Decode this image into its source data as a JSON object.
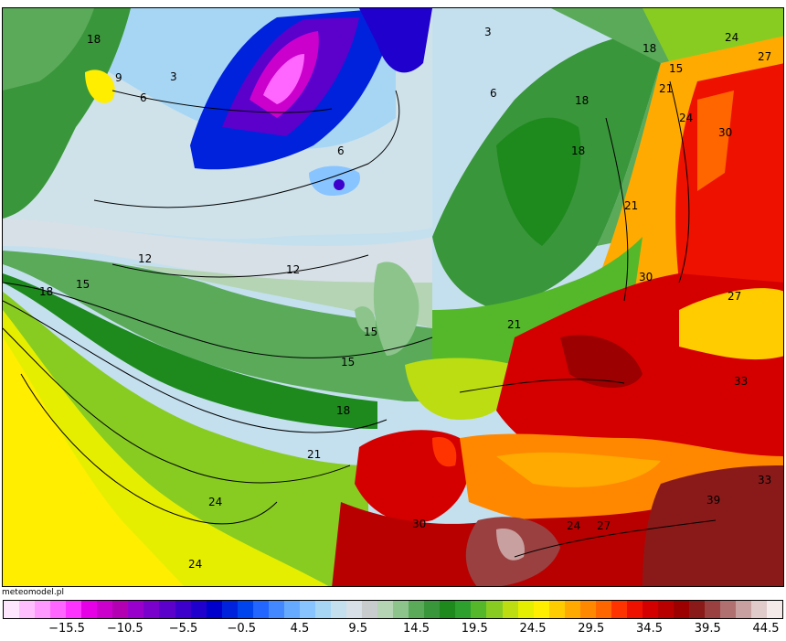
{
  "credit": "meteomodel.pl",
  "scale": {
    "colors": [
      "#ffe6ff",
      "#ffbfff",
      "#ff99ff",
      "#ff66ff",
      "#ff33ff",
      "#e600e6",
      "#cc00cc",
      "#b300b3",
      "#9900cc",
      "#7a00cc",
      "#5c00cc",
      "#3d00cc",
      "#1f00cc",
      "#0000cc",
      "#0022dd",
      "#0044ee",
      "#2266ff",
      "#4488ff",
      "#66aaff",
      "#88c4ff",
      "#a7d6f5",
      "#c4e0ee",
      "#d6e0e6",
      "#c8cccc",
      "#b4d4b4",
      "#8cc48c",
      "#5aaa5a",
      "#3a963a",
      "#1e8a1e",
      "#2ea02e",
      "#55b82a",
      "#88cc22",
      "#bbdd11",
      "#e6ee00",
      "#ffee00",
      "#ffcc00",
      "#ffaa00",
      "#ff8800",
      "#ff6600",
      "#ff3300",
      "#ee1100",
      "#d40000",
      "#b80000",
      "#9c0000",
      "#8a1a1a",
      "#9a4040",
      "#b07070",
      "#c8a0a0",
      "#e0caca",
      "#f4eaea"
    ],
    "tick_labels": [
      "−15.5",
      "−10.5",
      "−5.5",
      "−0.5",
      "4.5",
      "9.5",
      "14.5",
      "19.5",
      "24.5",
      "29.5",
      "34.5",
      "39.5",
      "44.5"
    ]
  },
  "contour_labels": [
    "18",
    "6",
    "9",
    "6",
    "3",
    "3",
    "18",
    "24",
    "27",
    "15",
    "18",
    "21",
    "24",
    "30",
    "6",
    "18",
    "21",
    "12",
    "12",
    "15",
    "18",
    "30",
    "27",
    "15",
    "33",
    "15",
    "21",
    "18",
    "21",
    "24",
    "24",
    "33",
    "39",
    "30",
    "27",
    "24"
  ],
  "legend_colors": {
    "cold_extreme": "#e600e6",
    "cold": "#0000cc",
    "cool": "#a7d6f5",
    "mild": "#3a963a",
    "warm": "#ffee00",
    "hot": "#ee1100",
    "extreme": "#9a4040"
  }
}
